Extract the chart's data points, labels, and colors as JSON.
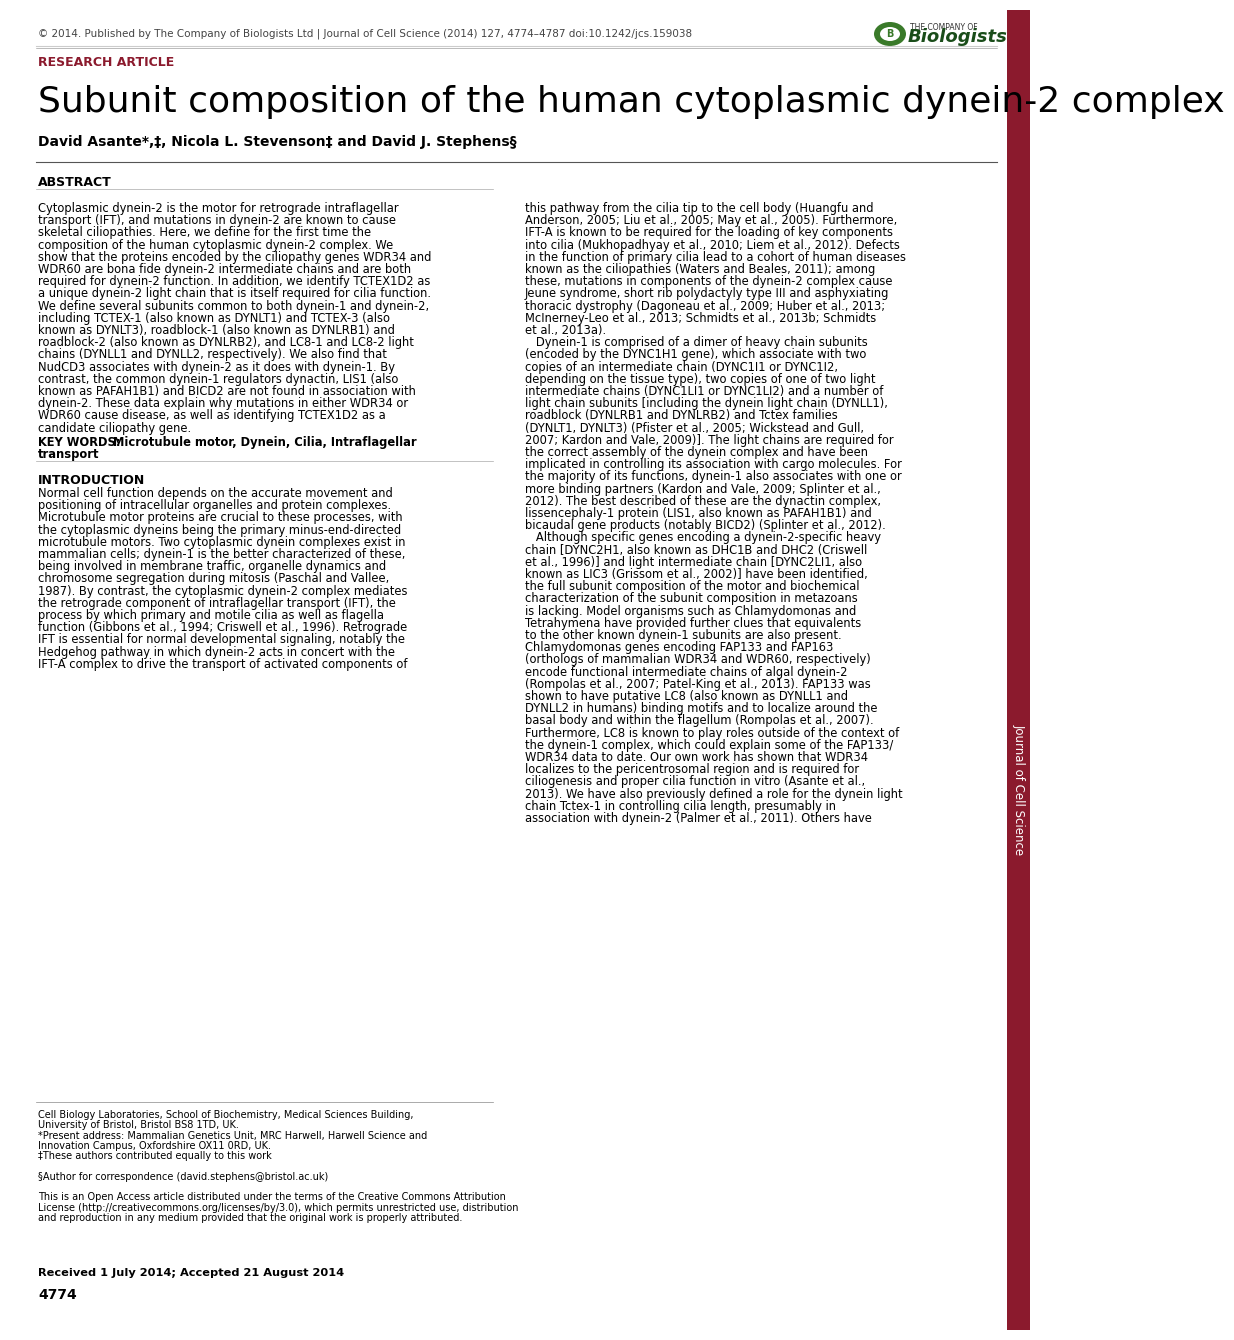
{
  "header_text": "© 2014. Published by The Company of Biologists Ltd | Journal of Cell Science (2014) 127, 4774–4787 doi:10.1242/jcs.159038",
  "research_article_label": "RESEARCH ARTICLE",
  "title": "Subunit composition of the human cytoplasmic dynein-2 complex",
  "authors": "David Asante*,‡, Nicola L. Stevenson‡ and David J. Stephens§",
  "abstract_title": "ABSTRACT",
  "intro_title": "INTRODUCTION",
  "keywords_bold": "KEY WORDS:",
  "keywords_rest": " Microtubule motor, Dynein, Cilia, Intraflagellar\ntransport",
  "received_text": "Received 1 July 2014; Accepted 21 August 2014",
  "page_number": "4774",
  "journal_sidebar": "Journal of Cell Science",
  "bg_color": "#ffffff",
  "sidebar_color": "#8b1a2d",
  "research_article_color": "#8b1a2d",
  "abstract_lines": [
    "Cytoplasmic dynein-2 is the motor for retrograde intraflagellar",
    "transport (IFT), and mutations in dynein-2 are known to cause",
    "skeletal ciliopathies. Here, we define for the first time the",
    "composition of the human cytoplasmic dynein-2 complex. We",
    "show that the proteins encoded by the ciliopathy genes WDR34 and",
    "WDR60 are bona fide dynein-2 intermediate chains and are both",
    "required for dynein-2 function. In addition, we identify TCTEX1D2 as",
    "a unique dynein-2 light chain that is itself required for cilia function.",
    "We define several subunits common to both dynein-1 and dynein-2,",
    "including TCTEX-1 (also known as DYNLT1) and TCTEX-3 (also",
    "known as DYNLT3), roadblock-1 (also known as DYNLRB1) and",
    "roadblock-2 (also known as DYNLRB2), and LC8-1 and LC8-2 light",
    "chains (DYNLL1 and DYNLL2, respectively). We also find that",
    "NudCD3 associates with dynein-2 as it does with dynein-1. By",
    "contrast, the common dynein-1 regulators dynactin, LIS1 (also",
    "known as PAFAH1B1) and BICD2 are not found in association with",
    "dynein-2. These data explain why mutations in either WDR34 or",
    "WDR60 cause disease, as well as identifying TCTEX1D2 as a",
    "candidate ciliopathy gene."
  ],
  "intro_lines": [
    "Normal cell function depends on the accurate movement and",
    "positioning of intracellular organelles and protein complexes.",
    "Microtubule motor proteins are crucial to these processes, with",
    "the cytoplasmic dyneins being the primary minus-end-directed",
    "microtubule motors. Two cytoplasmic dynein complexes exist in",
    "mammalian cells; dynein-1 is the better characterized of these,",
    "being involved in membrane traffic, organelle dynamics and",
    "chromosome segregation during mitosis (Paschal and Vallee,",
    "1987). By contrast, the cytoplasmic dynein-2 complex mediates",
    "the retrograde component of intraflagellar transport (IFT), the",
    "process by which primary and motile cilia as well as flagella",
    "function (Gibbons et al., 1994; Criswell et al., 1996). Retrograde",
    "IFT is essential for normal developmental signaling, notably the",
    "Hedgehog pathway in which dynein-2 acts in concert with the",
    "IFT-A complex to drive the transport of activated components of"
  ],
  "right_lines": [
    "this pathway from the cilia tip to the cell body (Huangfu and",
    "Anderson, 2005; Liu et al., 2005; May et al., 2005). Furthermore,",
    "IFT-A is known to be required for the loading of key components",
    "into cilia (Mukhopadhyay et al., 2010; Liem et al., 2012). Defects",
    "in the function of primary cilia lead to a cohort of human diseases",
    "known as the ciliopathies (Waters and Beales, 2011); among",
    "these, mutations in components of the dynein-2 complex cause",
    "Jeune syndrome, short rib polydactyly type III and asphyxiating",
    "thoracic dystrophy (Dagoneau et al., 2009; Huber et al., 2013;",
    "McInerney-Leo et al., 2013; Schmidts et al., 2013b; Schmidts",
    "et al., 2013a).",
    "   Dynein-1 is comprised of a dimer of heavy chain subunits",
    "(encoded by the DYNC1H1 gene), which associate with two",
    "copies of an intermediate chain (DYNC1I1 or DYNC1I2,",
    "depending on the tissue type), two copies of one of two light",
    "intermediate chains (DYNC1LI1 or DYNC1LI2) and a number of",
    "light chain subunits [including the dynein light chain (DYNLL1),",
    "roadblock (DYNLRB1 and DYNLRB2) and Tctex families",
    "(DYNLT1, DYNLT3) (Pfister et al., 2005; Wickstead and Gull,",
    "2007; Kardon and Vale, 2009)]. The light chains are required for",
    "the correct assembly of the dynein complex and have been",
    "implicated in controlling its association with cargo molecules. For",
    "the majority of its functions, dynein-1 also associates with one or",
    "more binding partners (Kardon and Vale, 2009; Splinter et al.,",
    "2012). The best described of these are the dynactin complex,",
    "lissencephaly-1 protein (LIS1, also known as PAFAH1B1) and",
    "bicaudal gene products (notably BICD2) (Splinter et al., 2012).",
    "   Although specific genes encoding a dynein-2-specific heavy",
    "chain [DYNC2H1, also known as DHC1B and DHC2 (Criswell",
    "et al., 1996)] and light intermediate chain [DYNC2LI1, also",
    "known as LIC3 (Grissom et al., 2002)] have been identified,",
    "the full subunit composition of the motor and biochemical",
    "characterization of the subunit composition in metazoans",
    "is lacking. Model organisms such as Chlamydomonas and",
    "Tetrahymena have provided further clues that equivalents",
    "to the other known dynein-1 subunits are also present.",
    "Chlamydomonas genes encoding FAP133 and FAP163",
    "(orthologs of mammalian WDR34 and WDR60, respectively)",
    "encode functional intermediate chains of algal dynein-2",
    "(Rompolas et al., 2007; Patel-King et al., 2013). FAP133 was",
    "shown to have putative LC8 (also known as DYNLL1 and",
    "DYNLL2 in humans) binding motifs and to localize around the",
    "basal body and within the flagellum (Rompolas et al., 2007).",
    "Furthermore, LC8 is known to play roles outside of the context of",
    "the dynein-1 complex, which could explain some of the FAP133/",
    "WDR34 data to date. Our own work has shown that WDR34",
    "localizes to the pericentrosomal region and is required for",
    "ciliogenesis and proper cilia function in vitro (Asante et al.,",
    "2013). We have also previously defined a role for the dynein light",
    "chain Tctex-1 in controlling cilia length, presumably in",
    "association with dynein-2 (Palmer et al., 2011). Others have"
  ],
  "footnote_lines": [
    "Cell Biology Laboratories, School of Biochemistry, Medical Sciences Building,",
    "University of Bristol, Bristol BS8 1TD, UK.",
    "*Present address: Mammalian Genetics Unit, MRC Harwell, Harwell Science and",
    "Innovation Campus, Oxfordshire OX11 0RD, UK.",
    "‡These authors contributed equally to this work",
    "",
    "§Author for correspondence (david.stephens@bristol.ac.uk)",
    "",
    "This is an Open Access article distributed under the terms of the Creative Commons Attribution",
    "License (http://creativecommons.org/licenses/by/3.0), which permits unrestricted use, distribution",
    "and reproduction in any medium provided that the original work is properly attributed."
  ]
}
